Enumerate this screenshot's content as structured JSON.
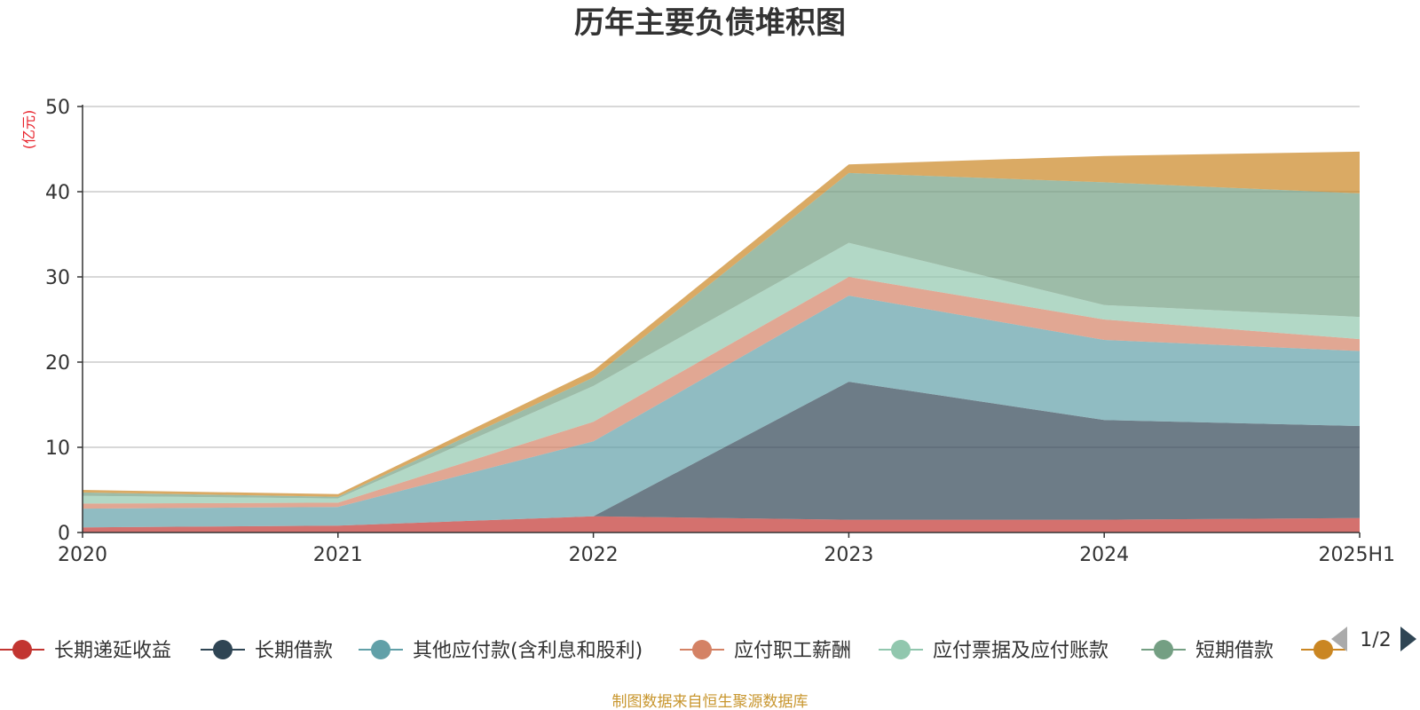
{
  "chart_data": {
    "type": "area",
    "stacked": true,
    "title": "历年主要负债堆积图",
    "ylabel": "(亿元)",
    "xlabel": "",
    "categories": [
      "2020",
      "2021",
      "2022",
      "2023",
      "2024",
      "2025H1"
    ],
    "ylim": [
      0,
      50
    ],
    "yticks": [
      0,
      10,
      20,
      30,
      40,
      50
    ],
    "grid": true,
    "series": [
      {
        "name": "长期递延收益",
        "color": "#c23531",
        "values": [
          0.6,
          0.8,
          1.9,
          1.5,
          1.5,
          1.7
        ]
      },
      {
        "name": "长期借款",
        "color": "#2f4554",
        "values": [
          0.0,
          0.0,
          0.0,
          16.2,
          11.7,
          10.8
        ]
      },
      {
        "name": "其他应付款(含利息和股利)",
        "color": "#61a0a8",
        "values": [
          2.2,
          2.2,
          8.8,
          10.1,
          9.4,
          8.8
        ]
      },
      {
        "name": "应付职工薪酬",
        "color": "#d48265",
        "values": [
          0.6,
          0.5,
          2.3,
          2.2,
          2.4,
          1.4
        ]
      },
      {
        "name": "应付票据及应付账款",
        "color": "#91c7ae",
        "values": [
          0.9,
          0.5,
          4.2,
          4.0,
          1.7,
          2.6
        ]
      },
      {
        "name": "短期借款",
        "color": "#749f83",
        "values": [
          0.4,
          0.2,
          1.0,
          8.2,
          14.4,
          14.5
        ]
      },
      {
        "name": "",
        "color": "#ca8622",
        "values": [
          0.3,
          0.3,
          0.8,
          1.0,
          3.1,
          4.9
        ]
      }
    ],
    "legend": {
      "position": "bottom",
      "page": "1/2"
    },
    "source": "制图数据来自恒生聚源数据库"
  }
}
